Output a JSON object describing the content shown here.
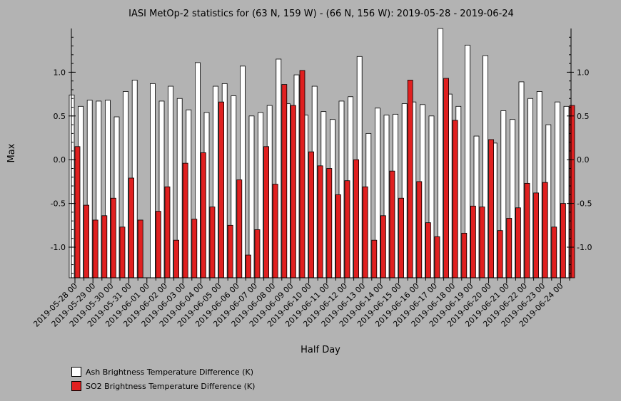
{
  "chart_data": {
    "type": "bar",
    "title": "IASI MetOp-2 statistics for (63 N, 159 W) - (66 N, 156 W): 2019-05-28 - 2019-06-24",
    "xlabel": "Half Day",
    "ylabel": "Max",
    "ylim": [
      -1.35,
      1.5
    ],
    "yticks": [
      -1.0,
      -0.5,
      0.0,
      0.5,
      1.0
    ],
    "ytick_labels": [
      "-1.0",
      "-0.5",
      "0.0",
      "0.5",
      "1.0"
    ],
    "x_tick_labels": [
      "2019-05-28 00",
      "2019-05-29 00",
      "2019-05-30 00",
      "2019-05-31 00",
      "2019-06-01 00",
      "2019-06-02 00",
      "2019-06-03 00",
      "2019-06-04 00",
      "2019-06-05 00",
      "2019-06-06 00",
      "2019-06-07 00",
      "2019-06-08 00",
      "2019-06-09 00",
      "2019-06-10 00",
      "2019-06-11 00",
      "2019-06-12 00",
      "2019-06-13 00",
      "2019-06-14 00",
      "2019-06-15 00",
      "2019-06-16 00",
      "2019-06-17 00",
      "2019-06-18 00",
      "2019-06-19 00",
      "2019-06-20 00",
      "2019-06-21 00",
      "2019-06-22 00",
      "2019-06-23 00",
      "2019-06-24 00"
    ],
    "series": [
      {
        "name": "Ash Brightness Temperature Difference (K)",
        "color": "#ffffff",
        "values": [
          0.74,
          0.61,
          0.68,
          0.67,
          0.68,
          0.49,
          0.78,
          0.91,
          null,
          0.87,
          0.67,
          0.84,
          0.7,
          0.57,
          1.11,
          0.54,
          0.84,
          0.87,
          0.73,
          1.07,
          0.5,
          0.54,
          0.62,
          1.15,
          0.64,
          0.97,
          0.51,
          0.84,
          0.55,
          0.46,
          0.67,
          0.72,
          1.18,
          0.3,
          0.59,
          0.51,
          0.52,
          0.64,
          0.66,
          0.63,
          0.5,
          1.5,
          0.75,
          0.61,
          1.31,
          0.27,
          1.19,
          0.19,
          0.56,
          0.46,
          0.89,
          0.7,
          0.78,
          0.4,
          0.66,
          0.61
        ]
      },
      {
        "name": "SO2 Brightness Temperature Difference (K)",
        "color": "#e02020",
        "values": [
          0.15,
          -0.52,
          -0.69,
          -0.64,
          -0.44,
          -0.77,
          -0.21,
          -0.69,
          null,
          -0.59,
          -0.31,
          -0.92,
          -0.04,
          -0.68,
          0.08,
          -0.54,
          0.66,
          -0.75,
          -0.23,
          -1.09,
          -0.8,
          0.15,
          -0.28,
          0.86,
          0.62,
          1.02,
          0.09,
          -0.07,
          -0.1,
          -0.4,
          -0.24,
          0.0,
          -0.31,
          -0.92,
          -0.64,
          -0.13,
          -0.44,
          0.91,
          -0.25,
          -0.72,
          -0.88,
          0.93,
          0.45,
          -0.84,
          -0.53,
          -0.54,
          0.23,
          -0.81,
          -0.67,
          -0.55,
          -0.27,
          -0.38,
          -0.26,
          -0.77,
          -0.5,
          0.62
        ]
      }
    ],
    "legend_position": "bottom-left",
    "grid": false
  }
}
